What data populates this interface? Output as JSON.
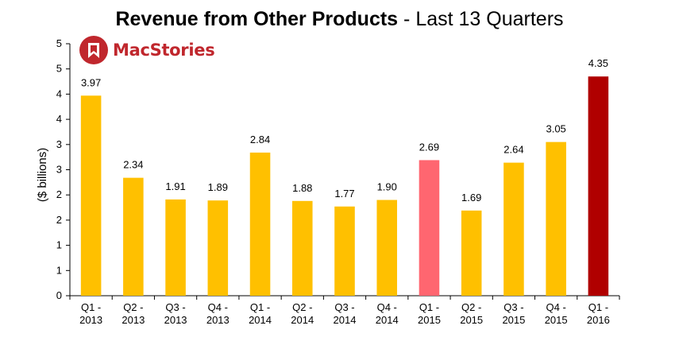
{
  "title": {
    "bold": "Revenue from Other Products",
    "rest": "- Last 13 Quarters"
  },
  "logo": {
    "text": "MacStories",
    "icon": "macstories-bookmark-logo",
    "color": "#c0272d"
  },
  "chart_data": {
    "type": "bar",
    "categories": [
      [
        "Q1 -",
        "2013"
      ],
      [
        "Q2 -",
        "2013"
      ],
      [
        "Q3 -",
        "2013"
      ],
      [
        "Q4 -",
        "2013"
      ],
      [
        "Q1 -",
        "2014"
      ],
      [
        "Q2 -",
        "2014"
      ],
      [
        "Q3 -",
        "2014"
      ],
      [
        "Q4 -",
        "2014"
      ],
      [
        "Q1 -",
        "2015"
      ],
      [
        "Q2 -",
        "2015"
      ],
      [
        "Q3 -",
        "2015"
      ],
      [
        "Q4 -",
        "2015"
      ],
      [
        "Q1 -",
        "2016"
      ]
    ],
    "values": [
      3.97,
      2.34,
      1.91,
      1.89,
      2.84,
      1.88,
      1.77,
      1.9,
      2.69,
      1.69,
      2.64,
      3.05,
      4.35
    ],
    "data_labels": [
      "3.97",
      "2.34",
      "1.91",
      "1.89",
      "2.84",
      "1.88",
      "1.77",
      "1.90",
      "2.69",
      "1.69",
      "2.64",
      "3.05",
      "4.35"
    ],
    "bar_colors": [
      "#ffc000",
      "#ffc000",
      "#ffc000",
      "#ffc000",
      "#ffc000",
      "#ffc000",
      "#ffc000",
      "#ffc000",
      "#ff6670",
      "#ffc000",
      "#ffc000",
      "#ffc000",
      "#b00000"
    ],
    "ylabel": "($ billions)",
    "xlabel": "",
    "ylim": [
      0,
      5
    ],
    "y_tick_labels": [
      "0",
      "1",
      "1",
      "2",
      "2",
      "3",
      "3",
      "4",
      "4",
      "5",
      "5"
    ],
    "y_tick_count": 11,
    "grid": false,
    "legend": "none"
  }
}
